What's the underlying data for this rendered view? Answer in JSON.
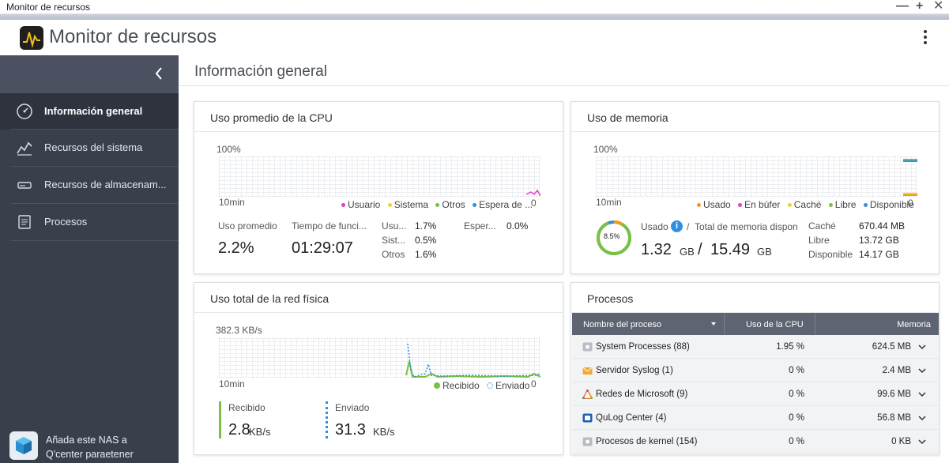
{
  "window": {
    "title": "Monitor de recursos"
  },
  "app": {
    "title": "Monitor de recursos"
  },
  "sidebar": {
    "items": [
      {
        "label": "Información general",
        "icon": "dashboard-gauge-icon",
        "active": true
      },
      {
        "label": "Recursos del sistema",
        "icon": "line-chart-icon"
      },
      {
        "label": "Recursos de almacenam...",
        "icon": "storage-drive-icon"
      },
      {
        "label": "Procesos",
        "icon": "process-list-icon"
      }
    ],
    "promo": {
      "line1": "Añada este NAS a",
      "line2": "Q'center paraetener"
    }
  },
  "main": {
    "title": "Información general"
  },
  "cpu": {
    "title": "Uso promedio de la CPU",
    "axis_top": "100%",
    "axis_bottom": "10min",
    "axis_right": "0",
    "legend": [
      "Usuario",
      "Sistema",
      "Otros",
      "Espera de ..."
    ],
    "avg_label": "Uso promedio",
    "avg_value": "2.2%",
    "uptime_label": "Tiempo de funci...",
    "uptime_value": "01:29:07",
    "breakdown": [
      {
        "label": "Usu...",
        "value": "1.7%"
      },
      {
        "label": "Sist...",
        "value": "0.5%"
      },
      {
        "label": "Otros",
        "value": "1.6%"
      }
    ],
    "wait_label": "Esper...",
    "wait_value": "0.0%"
  },
  "memory": {
    "title": "Uso de memoria",
    "axis_top": "100%",
    "axis_bottom": "10min",
    "axis_right": "0",
    "legend": [
      "Usado",
      "En búfer",
      "Caché",
      "Libre",
      "Disponible"
    ],
    "donut_percent": 8.5,
    "donut_label": "8.5%",
    "used_label": "Usado",
    "total_label": "Total de memoria dispon",
    "used_value": "1.32",
    "used_unit": "GB",
    "slash": "/",
    "total_value": "15.49",
    "total_unit": "GB",
    "details": [
      {
        "label": "Caché",
        "value": "670.44 MB"
      },
      {
        "label": "Libre",
        "value": "13.72 GB"
      },
      {
        "label": "Disponible",
        "value": "14.17 GB"
      }
    ]
  },
  "network": {
    "title": "Uso total de la red física",
    "axis_top": "382.3 KB/s",
    "axis_bottom": "10min",
    "axis_right": "0",
    "legend_received": "Recibido",
    "legend_sent": "Enviado",
    "received_label": "Recibido",
    "received_value": "2.8",
    "received_unit": "KB/s",
    "sent_label": "Enviado",
    "sent_value": "31.3",
    "sent_unit": "KB/s"
  },
  "processes": {
    "title": "Procesos",
    "columns": {
      "name": "Nombre del proceso",
      "cpu": "Uso de la CPU",
      "memory": "Memoria"
    },
    "rows": [
      {
        "name": "System Processes (88)",
        "cpu": "1.95 %",
        "memory": "624.5 MB",
        "icon": "gear-process-icon"
      },
      {
        "name": "Servidor Syslog (1)",
        "cpu": "0 %",
        "memory": "2.4 MB",
        "icon": "envelope-icon"
      },
      {
        "name": "Redes de Microsoft (9)",
        "cpu": "0 %",
        "memory": "99.6 MB",
        "icon": "network-triangle-icon"
      },
      {
        "name": "QuLog Center (4)",
        "cpu": "0 %",
        "memory": "56.8 MB",
        "icon": "qulog-icon"
      },
      {
        "name": "Procesos de kernel (154)",
        "cpu": "0 %",
        "memory": "0 KB",
        "icon": "gear-process-icon"
      }
    ]
  },
  "colors": {
    "usuario": "#e040c8",
    "sistema": "#e8d534",
    "otros": "#7ac143",
    "espera": "#2f8fe0",
    "mem_usado": "#f39c12",
    "mem_bufer": "#e040c8",
    "mem_cache": "#e8d534",
    "mem_libre": "#7ac143",
    "mem_disponible": "#2f8fe0",
    "net_recibido": "#7ac143",
    "net_enviado": "#2f8fe0"
  }
}
